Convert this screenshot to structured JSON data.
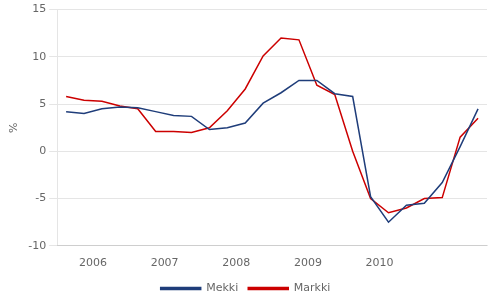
{
  "chart_data": {
    "type": "line",
    "ylabel": "%",
    "categories": [
      "2006",
      null,
      null,
      null,
      "2007",
      null,
      null,
      null,
      "2008",
      null,
      null,
      null,
      "2009",
      null,
      null,
      null,
      "2010",
      null,
      null,
      null,
      null,
      null,
      null,
      null
    ],
    "series": [
      {
        "name": "Mekki",
        "color": "#1f3d7a",
        "values": [
          4.2,
          4.0,
          4.5,
          4.7,
          4.6,
          4.2,
          3.8,
          3.7,
          2.3,
          2.5,
          3.0,
          5.1,
          6.2,
          7.5,
          7.5,
          6.1,
          5.8,
          -4.8,
          -7.5,
          -5.7,
          -5.5,
          -3.3,
          0.5,
          4.5
        ]
      },
      {
        "name": "Markki",
        "color": "#cc0000",
        "values": [
          5.8,
          5.4,
          5.3,
          4.8,
          4.5,
          2.1,
          2.1,
          2.0,
          2.5,
          4.3,
          6.6,
          10.1,
          12.0,
          11.8,
          7.0,
          6.0,
          0.0,
          -5.0,
          -6.5,
          -6.0,
          -5.0,
          -4.9,
          1.5,
          3.5
        ]
      }
    ],
    "ylim": [
      -10,
      15
    ],
    "yticks": [
      -10,
      -5,
      0,
      5,
      10,
      15
    ],
    "grid": "y",
    "legend": "bottom"
  }
}
